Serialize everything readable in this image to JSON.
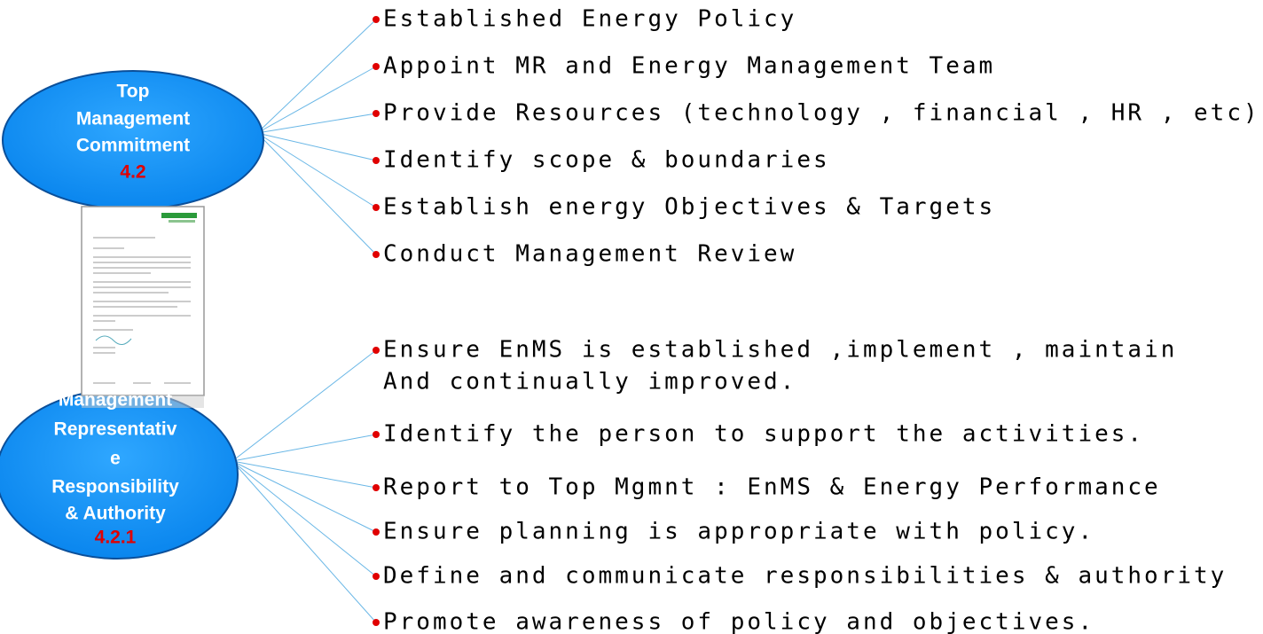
{
  "groups": [
    {
      "title_lines": [
        "Top",
        "Management",
        "Commitment"
      ],
      "number": "4.2",
      "items": [
        [
          "Established Energy Policy"
        ],
        [
          "Appoint MR and Energy Management Team"
        ],
        [
          "Provide Resources (technology , financial , HR , etc)"
        ],
        [
          "Identify scope & boundaries"
        ],
        [
          "Establish energy Objectives & Targets"
        ],
        [
          "Conduct Management Review"
        ]
      ]
    },
    {
      "title_lines": [
        "Management",
        "Representativ",
        "e",
        "Responsibility",
        "& Authority"
      ],
      "number": "4.2.1",
      "items": [
        [
          "Ensure EnMS is established ,implement , maintain",
          "And continually  improved."
        ],
        [
          "Identify the person to support the activities."
        ],
        [
          "Report to Top Mgmnt : EnMS & Energy Performance"
        ],
        [
          "Ensure planning is appropriate with policy."
        ],
        [
          "Define and communicate responsibilities & authority"
        ],
        [
          "Promote  awareness of policy and objectives."
        ]
      ]
    }
  ]
}
